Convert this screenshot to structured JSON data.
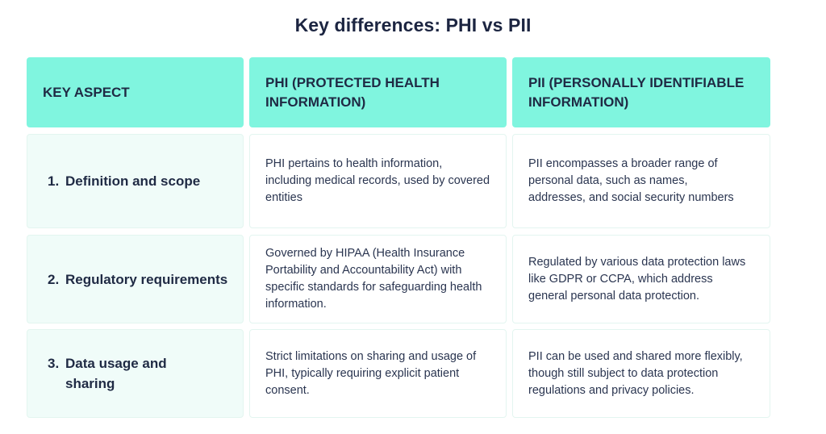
{
  "title": "Key differences: PHI vs PII",
  "headers": [
    "KEY ASPECT",
    "PHI (PROTECTED HEALTH INFORMATION)",
    "PII (PERSONALLY IDENTIFIABLE INFORMATION)"
  ],
  "rows": [
    {
      "number": "1.",
      "aspect": "Definition and scope",
      "phi": "PHI pertains to health information, including medical records, used by covered entities",
      "pii": "PII encompasses a broader range of personal data, such as names, addresses, and social security numbers"
    },
    {
      "number": "2.",
      "aspect": "Regulatory requirements",
      "phi": "Governed by HIPAA (Health Insurance Portability and Accountability Act) with specific standards for safeguarding health information.",
      "pii": "Regulated by various data protection laws like GDPR or CCPA, which address general personal data protection."
    },
    {
      "number": "3.",
      "aspect": "Data usage and sharing",
      "phi": "Strict limitations on sharing and usage of PHI, typically requiring explicit patient consent.",
      "pii": "PII can be used and shared more flexibly, though still subject to data protection regulations and privacy policies."
    }
  ],
  "colors": {
    "header_bg": "#80f5df",
    "aspect_bg": "#f0fcf9",
    "text": "#1f2a44"
  }
}
